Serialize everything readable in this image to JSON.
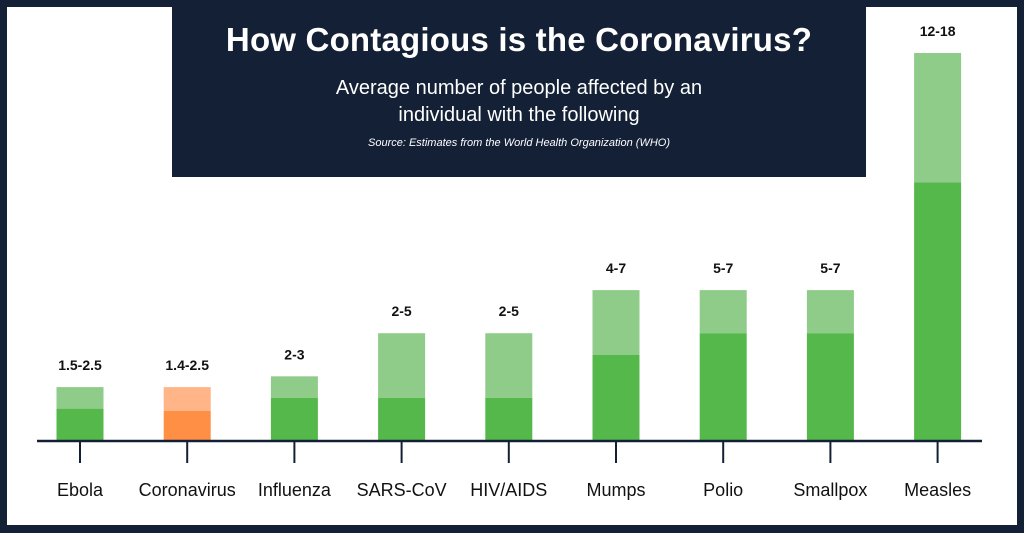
{
  "header": {
    "title": "How Contagious is the Coronavirus?",
    "subtitle": "Average number of people affected by an individual with the following",
    "source": "Source: Estimates from the World Health Organization (WHO)"
  },
  "colors": {
    "background": "#142036",
    "low_green": "#55b84a",
    "high_green": "#8fcb89",
    "low_orange": "#ff8f45",
    "high_orange": "#ffb587",
    "axis": "#142036"
  },
  "chart_data": {
    "type": "bar",
    "categories": [
      "Ebola",
      "Coronavirus",
      "Influenza",
      "SARS-CoV",
      "HIV/AIDS",
      "Mumps",
      "Polio",
      "Smallpox",
      "Measles"
    ],
    "series": [
      {
        "name": "low",
        "values": [
          1.5,
          1.4,
          2,
          2,
          2,
          4,
          5,
          5,
          12
        ]
      },
      {
        "name": "high",
        "values": [
          2.5,
          2.5,
          3,
          5,
          5,
          7,
          7,
          7,
          18
        ]
      }
    ],
    "labels": [
      "1.5-2.5",
      "1.4-2.5",
      "2-3",
      "2-5",
      "2-5",
      "4-7",
      "5-7",
      "5-7",
      "12-18"
    ],
    "highlight_index": 1,
    "ylim": [
      0,
      18
    ]
  }
}
